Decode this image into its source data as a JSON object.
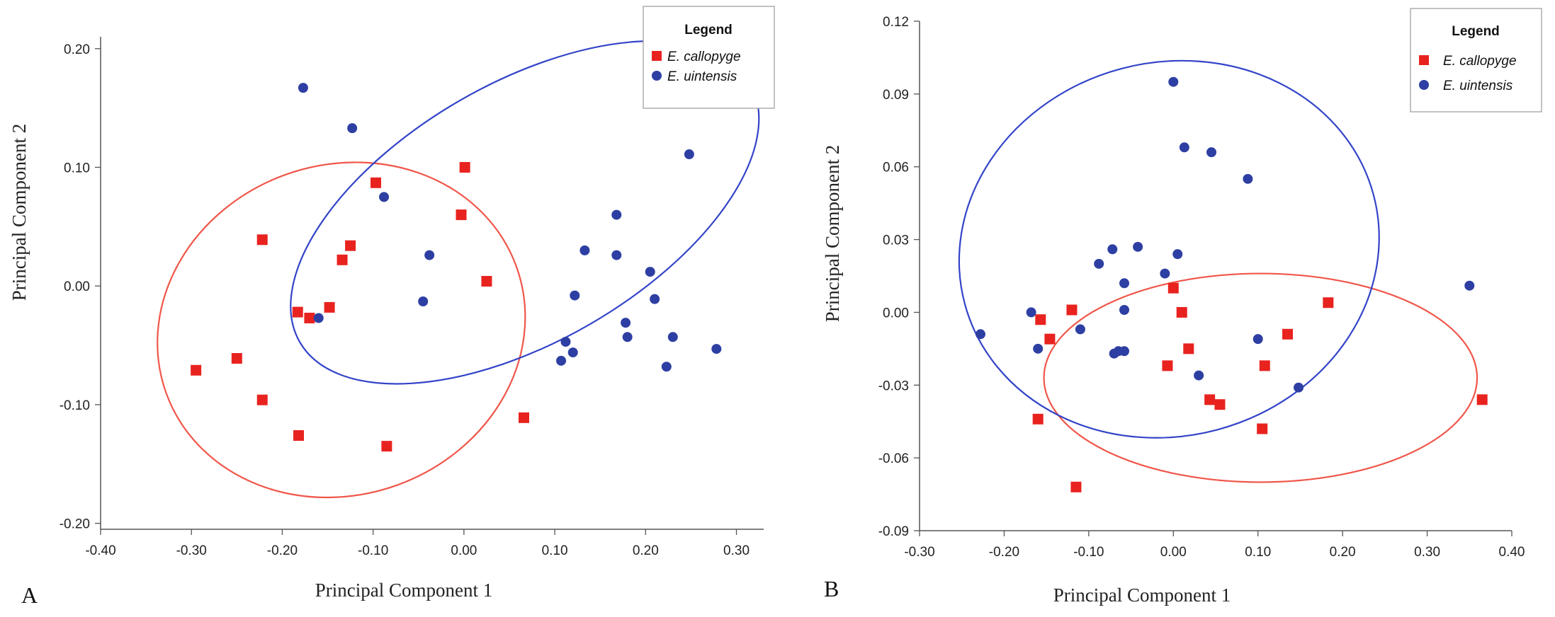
{
  "colors": {
    "callopyge": "#e8231f",
    "uintensis": "#2e3fa3",
    "callopyge_ellipse": "#f0564a",
    "uintensis_ellipse": "#3344c8"
  },
  "legend": {
    "title": "Legend",
    "entries": [
      {
        "label": "E. callopyge",
        "marker": "square",
        "color": "#e8231f"
      },
      {
        "label": "E. uintensis",
        "marker": "circle",
        "color": "#2e3fa3"
      }
    ]
  },
  "chart_data": [
    {
      "type": "scatter",
      "panel_label": "A",
      "title": "",
      "xlabel": "Principal Component 1",
      "ylabel": "Principal Component 2",
      "xlim": [
        -0.4,
        0.33
      ],
      "ylim": [
        -0.205,
        0.21
      ],
      "xticks": [
        "-0.40",
        "-0.30",
        "-0.20",
        "-0.10",
        "0.00",
        "0.10",
        "0.20",
        "0.30"
      ],
      "xtick_values": [
        -0.4,
        -0.3,
        -0.2,
        -0.1,
        0.0,
        0.1,
        0.2,
        0.3
      ],
      "yticks": [
        "0.20",
        "0.10",
        "0.00",
        "-0.10",
        "-0.20"
      ],
      "ytick_values": [
        0.2,
        0.1,
        0.0,
        -0.1,
        -0.2
      ],
      "legend_position": "top-right",
      "grid": false,
      "series": [
        {
          "name": "E. callopyge",
          "marker": "square",
          "color": "#e8231f",
          "points": [
            [
              -0.295,
              -0.071
            ],
            [
              -0.25,
              -0.061
            ],
            [
              -0.222,
              -0.096
            ],
            [
              -0.222,
              0.039
            ],
            [
              -0.183,
              -0.022
            ],
            [
              -0.182,
              -0.126
            ],
            [
              -0.17,
              -0.027
            ],
            [
              -0.148,
              -0.018
            ],
            [
              -0.134,
              0.022
            ],
            [
              -0.125,
              0.034
            ],
            [
              -0.097,
              0.087
            ],
            [
              -0.085,
              -0.135
            ],
            [
              -0.003,
              0.06
            ],
            [
              0.001,
              0.1
            ],
            [
              0.025,
              0.004
            ],
            [
              0.066,
              -0.111
            ]
          ],
          "ellipse": {
            "cx": -0.135,
            "cy": -0.037,
            "rx": 0.205,
            "ry": 0.139,
            "angle_deg": -20
          }
        },
        {
          "name": "E. uintensis",
          "marker": "circle",
          "color": "#2e3fa3",
          "points": [
            [
              -0.177,
              0.167
            ],
            [
              -0.123,
              0.133
            ],
            [
              -0.088,
              0.075
            ],
            [
              -0.16,
              -0.027
            ],
            [
              -0.038,
              0.026
            ],
            [
              -0.045,
              -0.013
            ],
            [
              0.107,
              -0.063
            ],
            [
              0.112,
              -0.047
            ],
            [
              0.12,
              -0.056
            ],
            [
              0.122,
              -0.008
            ],
            [
              0.133,
              0.03
            ],
            [
              0.168,
              0.06
            ],
            [
              0.168,
              0.026
            ],
            [
              0.178,
              -0.031
            ],
            [
              0.18,
              -0.043
            ],
            [
              0.205,
              0.012
            ],
            [
              0.21,
              -0.011
            ],
            [
              0.223,
              -0.068
            ],
            [
              0.23,
              -0.043
            ],
            [
              0.248,
              0.111
            ],
            [
              0.278,
              -0.053
            ]
          ],
          "ellipse": {
            "cx": 0.067,
            "cy": 0.062,
            "rx": 0.286,
            "ry": 0.109,
            "angle_deg": -30
          }
        }
      ]
    },
    {
      "type": "scatter",
      "panel_label": "B",
      "title": "",
      "xlabel": "Principal Component 1",
      "ylabel": "Principal Component 2",
      "xlim": [
        -0.3,
        0.4
      ],
      "ylim": [
        -0.09,
        0.12
      ],
      "xticks": [
        "-0.30",
        "-0.20",
        "-0.10",
        "0.00",
        "0.10",
        "0.20",
        "0.30",
        "0.40"
      ],
      "xtick_values": [
        -0.3,
        -0.2,
        -0.1,
        0.0,
        0.1,
        0.2,
        0.3,
        0.4
      ],
      "yticks": [
        "0.12",
        "0.09",
        "0.06",
        "0.03",
        "0.00",
        "-0.03",
        "-0.06",
        "-0.09"
      ],
      "ytick_values": [
        0.12,
        0.09,
        0.06,
        0.03,
        0.0,
        -0.03,
        -0.06,
        -0.09
      ],
      "legend_position": "top-right",
      "grid": false,
      "series": [
        {
          "name": "E. callopyge",
          "marker": "square",
          "color": "#e8231f",
          "points": [
            [
              -0.16,
              -0.044
            ],
            [
              -0.157,
              -0.003
            ],
            [
              -0.146,
              -0.011
            ],
            [
              -0.12,
              0.001
            ],
            [
              -0.115,
              -0.072
            ],
            [
              -0.007,
              -0.022
            ],
            [
              0.0,
              0.01
            ],
            [
              0.01,
              0.0
            ],
            [
              0.018,
              -0.015
            ],
            [
              0.043,
              -0.036
            ],
            [
              0.055,
              -0.038
            ],
            [
              0.105,
              -0.048
            ],
            [
              0.108,
              -0.022
            ],
            [
              0.135,
              -0.009
            ],
            [
              0.183,
              0.004
            ],
            [
              0.365,
              -0.036
            ]
          ],
          "ellipse": {
            "cx": 0.103,
            "cy": -0.027,
            "rx": 0.256,
            "ry": 0.043,
            "angle_deg": 0
          }
        },
        {
          "name": "E. uintensis",
          "marker": "circle",
          "color": "#2e3fa3",
          "points": [
            [
              -0.228,
              -0.009
            ],
            [
              -0.168,
              0.0
            ],
            [
              -0.16,
              -0.015
            ],
            [
              -0.11,
              -0.007
            ],
            [
              -0.088,
              0.02
            ],
            [
              -0.072,
              0.026
            ],
            [
              -0.07,
              -0.017
            ],
            [
              -0.065,
              -0.016
            ],
            [
              -0.058,
              -0.016
            ],
            [
              -0.058,
              0.012
            ],
            [
              -0.058,
              0.001
            ],
            [
              -0.042,
              0.027
            ],
            [
              -0.01,
              0.016
            ],
            [
              0.0,
              0.095
            ],
            [
              0.005,
              0.024
            ],
            [
              0.013,
              0.068
            ],
            [
              0.03,
              -0.026
            ],
            [
              0.045,
              0.066
            ],
            [
              0.088,
              0.055
            ],
            [
              0.1,
              -0.011
            ],
            [
              0.148,
              -0.031
            ],
            [
              0.35,
              0.011
            ]
          ],
          "ellipse": {
            "cx": -0.005,
            "cy": 0.026,
            "rx": 0.25,
            "ry": 0.077,
            "angle_deg": -15
          }
        }
      ]
    }
  ]
}
